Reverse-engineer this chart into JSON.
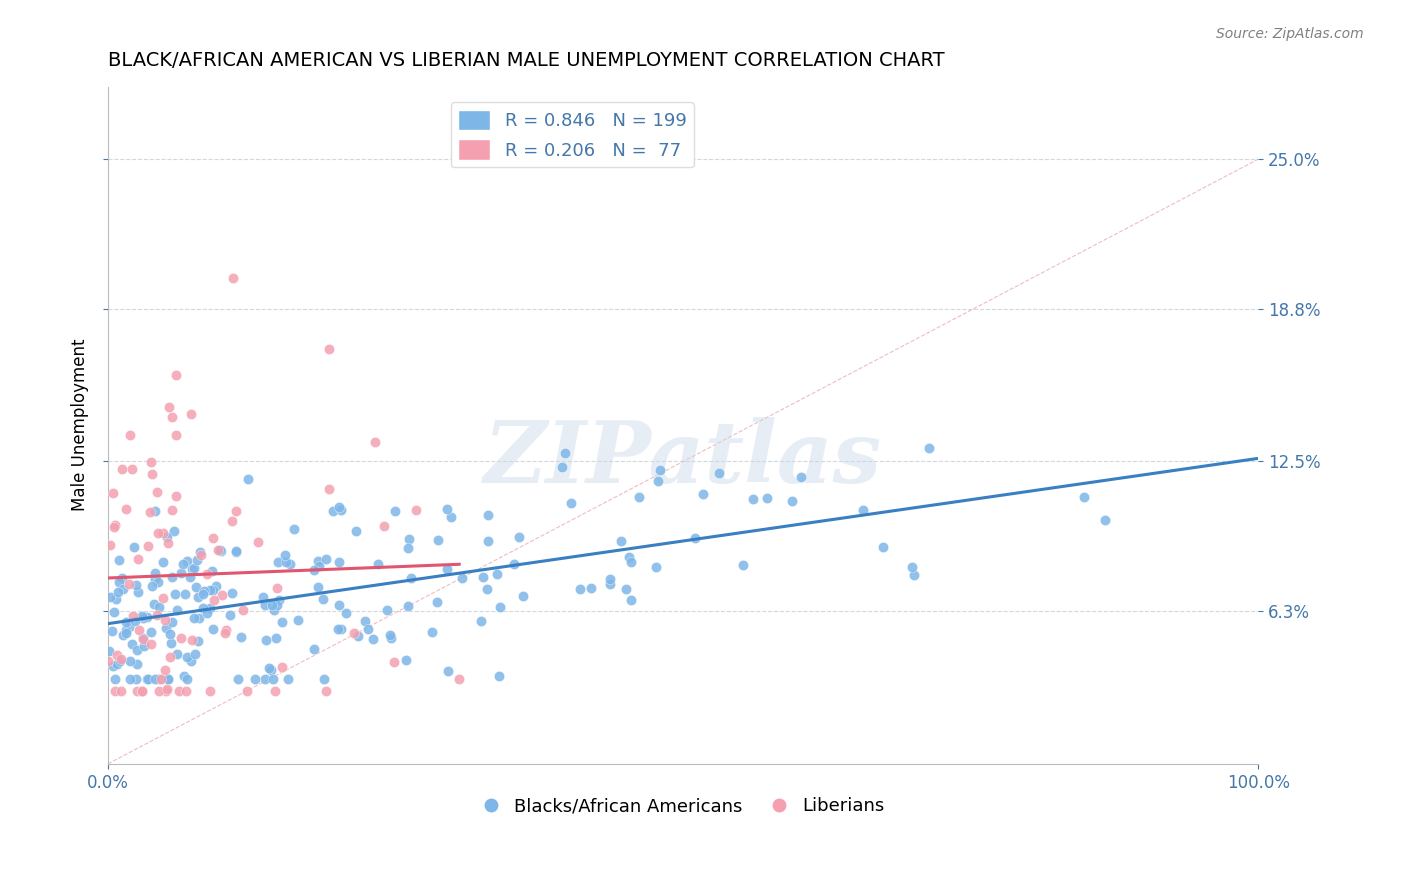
{
  "title": "BLACK/AFRICAN AMERICAN VS LIBERIAN MALE UNEMPLOYMENT CORRELATION CHART",
  "source": "Source: ZipAtlas.com",
  "xlabel": "",
  "ylabel": "Male Unemployment",
  "xlim": [
    0.0,
    100.0
  ],
  "ylim": [
    0.0,
    28.0
  ],
  "yticks": [
    6.3,
    12.5,
    18.8,
    25.0
  ],
  "ytick_labels": [
    "6.3%",
    "12.5%",
    "18.8%",
    "25.0%"
  ],
  "xticks": [
    0.0,
    100.0
  ],
  "xtick_labels": [
    "0.0%",
    "100.0%"
  ],
  "blue_R": 0.846,
  "blue_N": 199,
  "pink_R": 0.206,
  "pink_N": 77,
  "blue_color": "#7EB6E8",
  "pink_color": "#F4A0B0",
  "blue_line_color": "#3A7FC1",
  "pink_line_color": "#E05570",
  "ref_line_color": "#C8C8C8",
  "legend_blue_label": "Blacks/African Americans",
  "legend_pink_label": "Liberians",
  "watermark": "ZIPatlas",
  "watermark_color": "#C8D8E8",
  "title_fontsize": 14,
  "axis_label_color": "#4477AA",
  "tick_color": "#4477AA",
  "background_color": "#FFFFFF",
  "blue_scatter_seed": 42,
  "pink_scatter_seed": 7
}
